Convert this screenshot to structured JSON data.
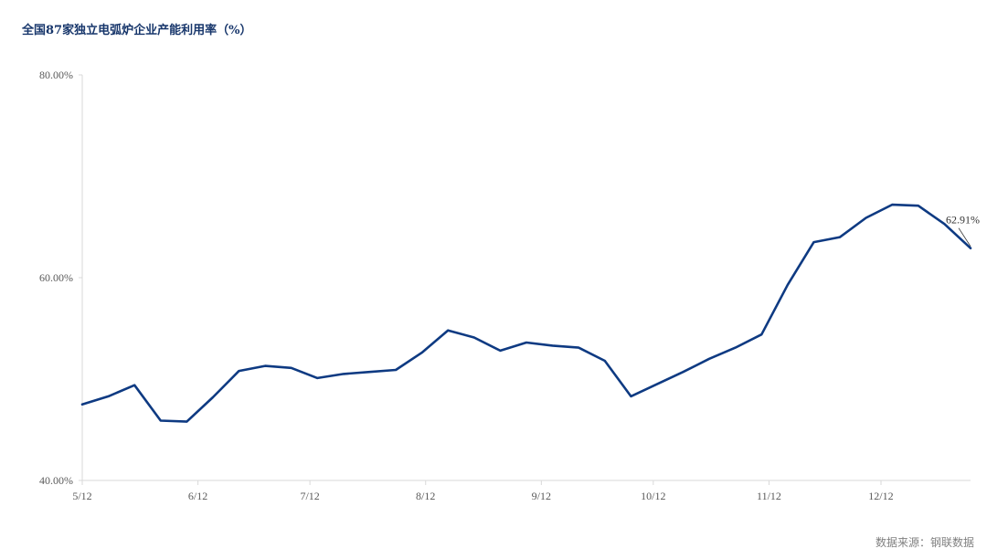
{
  "chart_data": {
    "type": "line",
    "title": "全国87家独立电弧炉企业产能利用率（%）",
    "xlabel": "",
    "ylabel": "",
    "ylim": [
      40,
      80
    ],
    "y_ticks": [
      40,
      60,
      80
    ],
    "y_tick_labels": [
      "40.00%",
      "60.00%",
      "80.00%"
    ],
    "x_tick_labels": [
      "5/12",
      "6/12",
      "7/12",
      "8/12",
      "9/12",
      "10/12",
      "11/12",
      "12/12"
    ],
    "x_tick_dates": [
      "2024-05-12",
      "2024-06-12",
      "2024-07-12",
      "2024-08-12",
      "2024-09-12",
      "2024-10-12",
      "2024-11-12",
      "2024-12-12"
    ],
    "grid": false,
    "series": [
      {
        "name": "",
        "color": "#0e3a82",
        "points": [
          {
            "x": "2024-05-12",
            "y": 47.5
          },
          {
            "x": "2024-05-19",
            "y": 48.3
          },
          {
            "x": "2024-05-26",
            "y": 49.4
          },
          {
            "x": "2024-06-02",
            "y": 45.9
          },
          {
            "x": "2024-06-09",
            "y": 45.8
          },
          {
            "x": "2024-06-16",
            "y": 48.2
          },
          {
            "x": "2024-06-23",
            "y": 50.8
          },
          {
            "x": "2024-06-30",
            "y": 51.3
          },
          {
            "x": "2024-07-07",
            "y": 51.1
          },
          {
            "x": "2024-07-14",
            "y": 50.1
          },
          {
            "x": "2024-07-21",
            "y": 50.5
          },
          {
            "x": "2024-07-28",
            "y": 50.7
          },
          {
            "x": "2024-08-04",
            "y": 50.9
          },
          {
            "x": "2024-08-11",
            "y": 52.6
          },
          {
            "x": "2024-08-18",
            "y": 54.8
          },
          {
            "x": "2024-08-25",
            "y": 54.1
          },
          {
            "x": "2024-09-01",
            "y": 52.8
          },
          {
            "x": "2024-09-08",
            "y": 53.6
          },
          {
            "x": "2024-09-15",
            "y": 53.3
          },
          {
            "x": "2024-09-22",
            "y": 53.1
          },
          {
            "x": "2024-09-29",
            "y": 51.8
          },
          {
            "x": "2024-10-06",
            "y": 48.3
          },
          {
            "x": "2024-10-13",
            "y": 49.5
          },
          {
            "x": "2024-10-20",
            "y": 50.7
          },
          {
            "x": "2024-10-27",
            "y": 52.0
          },
          {
            "x": "2024-11-03",
            "y": 53.1
          },
          {
            "x": "2024-11-10",
            "y": 54.4
          },
          {
            "x": "2024-11-17",
            "y": 59.3
          },
          {
            "x": "2024-11-24",
            "y": 63.5
          },
          {
            "x": "2024-12-01",
            "y": 64.0
          },
          {
            "x": "2024-12-08",
            "y": 65.9
          },
          {
            "x": "2024-12-15",
            "y": 67.2
          },
          {
            "x": "2024-12-22",
            "y": 67.1
          },
          {
            "x": "2024-12-29",
            "y": 65.3
          },
          {
            "x": "2025-01-05",
            "y": 62.91
          }
        ]
      }
    ],
    "annotations": [
      {
        "label": "62.91%",
        "x": "2025-01-05",
        "y": 62.91
      }
    ]
  },
  "source": "数据来源：钢联数据"
}
